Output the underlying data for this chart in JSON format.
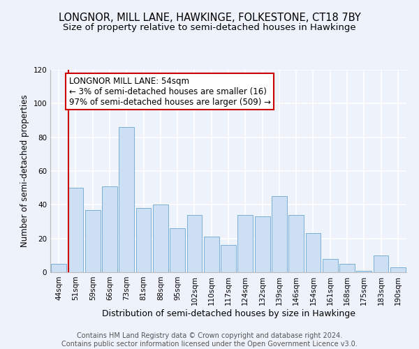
{
  "title": "LONGNOR, MILL LANE, HAWKINGE, FOLKESTONE, CT18 7BY",
  "subtitle": "Size of property relative to semi-detached houses in Hawkinge",
  "xlabel": "Distribution of semi-detached houses by size in Hawkinge",
  "ylabel": "Number of semi-detached properties",
  "categories": [
    "44sqm",
    "51sqm",
    "59sqm",
    "66sqm",
    "73sqm",
    "81sqm",
    "88sqm",
    "95sqm",
    "102sqm",
    "110sqm",
    "117sqm",
    "124sqm",
    "132sqm",
    "139sqm",
    "146sqm",
    "154sqm",
    "161sqm",
    "168sqm",
    "175sqm",
    "183sqm",
    "190sqm"
  ],
  "values": [
    5,
    50,
    37,
    51,
    86,
    38,
    40,
    26,
    34,
    21,
    16,
    34,
    33,
    45,
    34,
    23,
    8,
    5,
    1,
    10,
    3
  ],
  "bar_color": "#ccdff5",
  "bar_edge_color": "#7aafd4",
  "annotation_text": "LONGNOR MILL LANE: 54sqm\n← 3% of semi-detached houses are smaller (16)\n97% of semi-detached houses are larger (509) →",
  "annotation_box_color": "#ffffff",
  "annotation_box_edge_color": "#cc0000",
  "vline_color": "#cc0000",
  "vline_x_index": 1,
  "ylim": [
    0,
    120
  ],
  "yticks": [
    0,
    20,
    40,
    60,
    80,
    100,
    120
  ],
  "background_color": "#eef2fa",
  "grid_color": "#ffffff",
  "footer_text": "Contains HM Land Registry data © Crown copyright and database right 2024.\nContains public sector information licensed under the Open Government Licence v3.0.",
  "title_fontsize": 10.5,
  "subtitle_fontsize": 9.5,
  "xlabel_fontsize": 9,
  "ylabel_fontsize": 8.5,
  "tick_fontsize": 7.5,
  "annotation_fontsize": 8.5,
  "footer_fontsize": 7
}
